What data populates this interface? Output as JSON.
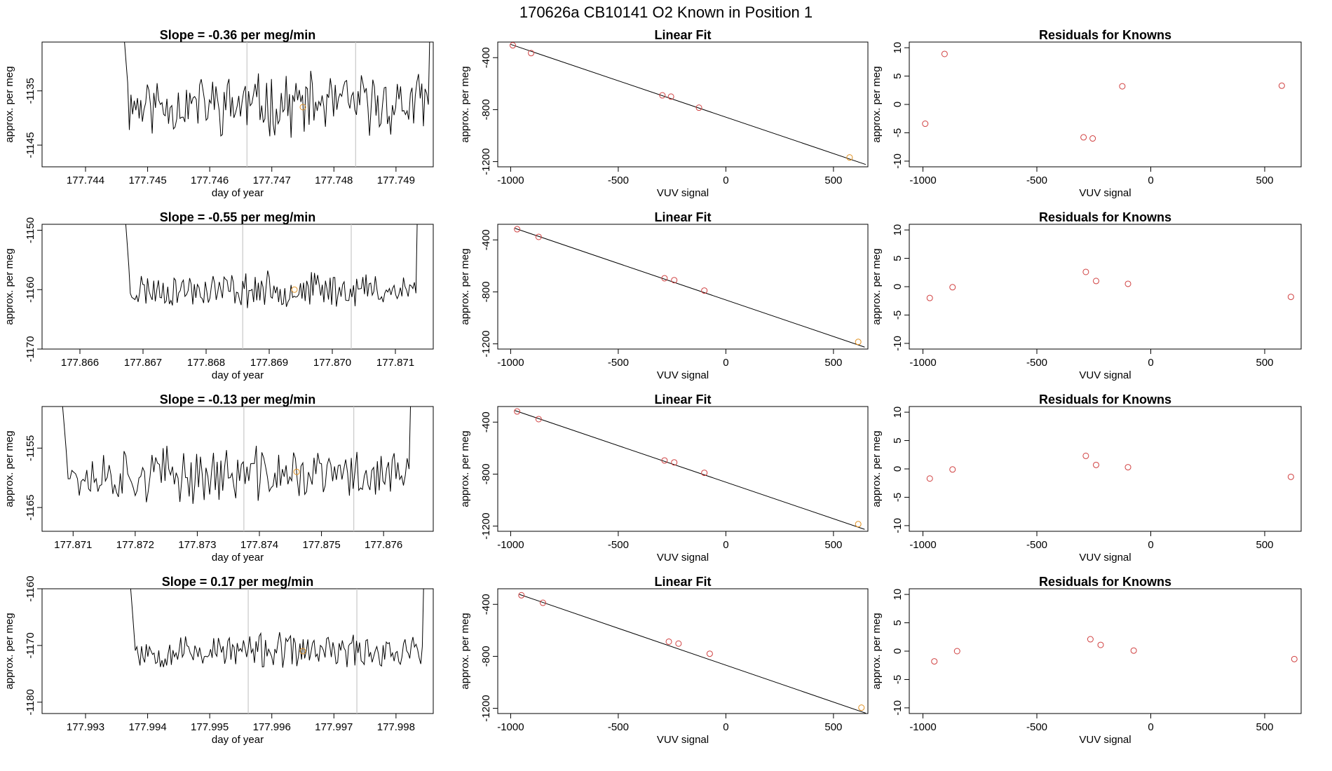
{
  "figure": {
    "title": "170626a     CB10141    O2 Known in Position  1"
  },
  "chart_data": [
    {
      "row": 1,
      "time_series": {
        "type": "line",
        "title": "Slope =  -0.36  per meg/min",
        "xlabel": "day of year",
        "ylabel": "approx. per meg",
        "xlim": [
          177.7433,
          177.7496
        ],
        "ylim": [
          -1149,
          -1126
        ],
        "xticks": [
          177.744,
          177.745,
          177.746,
          177.747,
          177.748,
          177.749
        ],
        "xtick_labels": [
          "177.744",
          "177.745",
          "177.746",
          "177.747",
          "177.748",
          "177.749"
        ],
        "yticks": [
          -1145,
          -1135
        ],
        "ytick_labels": [
          "-1145",
          "-1135"
        ],
        "start": 177.7446,
        "end": 177.7496,
        "base": -1137.5,
        "amplitude": 4.6,
        "seed": 11,
        "vlines": [
          177.7466,
          177.74835
        ],
        "highlight": [
          177.7475,
          -1138.0
        ]
      },
      "linear_fit": {
        "type": "scatter",
        "title": "Linear Fit",
        "xlabel": "VUV signal",
        "ylabel": "approx. per meg",
        "xlim": [
          -1060,
          660
        ],
        "ylim": [
          -1240,
          -280
        ],
        "xticks": [
          -1000,
          -500,
          0,
          500
        ],
        "xtick_labels": [
          "-1000",
          "-500",
          "0",
          "500"
        ],
        "yticks": [
          -1200,
          -800,
          -400
        ],
        "ytick_labels": [
          "-1200",
          "-800",
          "-400"
        ],
        "x": [
          -990,
          -905,
          -295,
          -255,
          -125,
          575
        ],
        "y": [
          -305,
          -365,
          -690,
          -700,
          -785,
          -1168
        ],
        "point_colors": [
          "#d04040",
          "#d04040",
          "#d04040",
          "#d04040",
          "#d04040",
          "#e09020"
        ],
        "line": [
          [
            -1000,
            -298
          ],
          [
            650,
            -1222
          ]
        ]
      },
      "residuals": {
        "type": "scatter",
        "title": "Residuals for Knowns",
        "xlabel": "VUV signal",
        "ylabel": "approx. per meg",
        "xlim": [
          -1060,
          660
        ],
        "ylim": [
          -11,
          11
        ],
        "xticks": [
          -1000,
          -500,
          0,
          500
        ],
        "xtick_labels": [
          "-1000",
          "-500",
          "0",
          "500"
        ],
        "yticks": [
          -10,
          -5,
          0,
          5,
          10
        ],
        "ytick_labels": [
          "-10",
          "-5",
          "0",
          "5",
          "10"
        ],
        "x": [
          -990,
          -905,
          -295,
          -255,
          -125,
          575
        ],
        "y": [
          -3.4,
          8.9,
          -5.8,
          -6.0,
          3.2,
          3.3
        ]
      }
    },
    {
      "row": 2,
      "time_series": {
        "type": "line",
        "title": "Slope =  -0.55  per meg/min",
        "xlabel": "day of year",
        "ylabel": "approx. per meg",
        "xlim": [
          177.8654,
          177.8716
        ],
        "ylim": [
          -1170,
          -1149
        ],
        "xticks": [
          177.866,
          177.867,
          177.868,
          177.869,
          177.87,
          177.871
        ],
        "xtick_labels": [
          "177.866",
          "177.867",
          "177.868",
          "177.869",
          "177.870",
          "177.871"
        ],
        "yticks": [
          -1170,
          -1160,
          -1150
        ],
        "ytick_labels": [
          "-1170",
          "-1160",
          "-1150"
        ],
        "start": 177.8667,
        "end": 177.8714,
        "base": -1160.0,
        "amplitude": 2.4,
        "seed": 23,
        "vlines": [
          177.86858,
          177.8703
        ],
        "highlight": [
          177.8694,
          -1160.0
        ]
      },
      "linear_fit": {
        "type": "scatter",
        "title": "Linear Fit",
        "xlabel": "VUV signal",
        "ylabel": "approx. per meg",
        "xlim": [
          -1060,
          660
        ],
        "ylim": [
          -1240,
          -280
        ],
        "xticks": [
          -1000,
          -500,
          0,
          500
        ],
        "xtick_labels": [
          "-1000",
          "-500",
          "0",
          "500"
        ],
        "yticks": [
          -1200,
          -800,
          -400
        ],
        "ytick_labels": [
          "-1200",
          "-800",
          "-400"
        ],
        "x": [
          -970,
          -870,
          -285,
          -240,
          -100,
          615
        ],
        "y": [
          -318,
          -377,
          -695,
          -710,
          -790,
          -1185
        ],
        "point_colors": [
          "#d04040",
          "#d04040",
          "#d04040",
          "#d04040",
          "#d04040",
          "#e09020"
        ],
        "line": [
          [
            -980,
            -311
          ],
          [
            645,
            -1225
          ]
        ]
      },
      "residuals": {
        "type": "scatter",
        "title": "Residuals for Knowns",
        "xlabel": "VUV signal",
        "ylabel": "approx. per meg",
        "xlim": [
          -1060,
          660
        ],
        "ylim": [
          -11,
          11
        ],
        "xticks": [
          -1000,
          -500,
          0,
          500
        ],
        "xtick_labels": [
          "-1000",
          "-500",
          "0",
          "500"
        ],
        "yticks": [
          -10,
          -5,
          0,
          5,
          10
        ],
        "ytick_labels": [
          "-10",
          "-5",
          "0",
          "5",
          "10"
        ],
        "x": [
          -970,
          -870,
          -285,
          -240,
          -100,
          615
        ],
        "y": [
          -2.0,
          -0.1,
          2.6,
          1.0,
          0.5,
          -1.8
        ]
      }
    },
    {
      "row": 3,
      "time_series": {
        "type": "line",
        "title": "Slope =  -0.13  per meg/min",
        "xlabel": "day of year",
        "ylabel": "approx. per meg",
        "xlim": [
          177.8705,
          177.8768
        ],
        "ylim": [
          -1169,
          -1148
        ],
        "xticks": [
          177.871,
          177.872,
          177.873,
          177.874,
          177.875,
          177.876
        ],
        "xtick_labels": [
          "177.871",
          "177.872",
          "177.873",
          "177.874",
          "177.875",
          "177.876"
        ],
        "yticks": [
          -1165,
          -1155
        ],
        "ytick_labels": [
          "-1165",
          "-1155"
        ],
        "start": 177.8708,
        "end": 177.8765,
        "base": -1159.5,
        "amplitude": 3.8,
        "seed": 37,
        "vlines": [
          177.87375,
          177.87552
        ],
        "highlight": [
          177.8746,
          -1159.0
        ]
      },
      "linear_fit": {
        "type": "scatter",
        "title": "Linear Fit",
        "xlabel": "VUV signal",
        "ylabel": "approx. per meg",
        "xlim": [
          -1060,
          660
        ],
        "ylim": [
          -1240,
          -280
        ],
        "xticks": [
          -1000,
          -500,
          0,
          500
        ],
        "xtick_labels": [
          "-1000",
          "-500",
          "0",
          "500"
        ],
        "yticks": [
          -1200,
          -800,
          -400
        ],
        "ytick_labels": [
          "-1200",
          "-800",
          "-400"
        ],
        "x": [
          -970,
          -870,
          -285,
          -240,
          -100,
          615
        ],
        "y": [
          -318,
          -377,
          -695,
          -710,
          -790,
          -1185
        ],
        "point_colors": [
          "#d04040",
          "#d04040",
          "#d04040",
          "#d04040",
          "#d04040",
          "#e09020"
        ],
        "line": [
          [
            -980,
            -311
          ],
          [
            645,
            -1225
          ]
        ]
      },
      "residuals": {
        "type": "scatter",
        "title": "Residuals for Knowns",
        "xlabel": "VUV signal",
        "ylabel": "approx. per meg",
        "xlim": [
          -1060,
          660
        ],
        "ylim": [
          -11,
          11
        ],
        "xticks": [
          -1000,
          -500,
          0,
          500
        ],
        "xtick_labels": [
          "-1000",
          "-500",
          "0",
          "500"
        ],
        "yticks": [
          -10,
          -5,
          0,
          5,
          10
        ],
        "ytick_labels": [
          "-10",
          "-5",
          "0",
          "5",
          "10"
        ],
        "x": [
          -970,
          -870,
          -285,
          -240,
          -100,
          615
        ],
        "y": [
          -1.7,
          -0.1,
          2.3,
          0.7,
          0.3,
          -1.4
        ]
      }
    },
    {
      "row": 4,
      "time_series": {
        "type": "line",
        "title": "Slope =  0.17  per meg/min",
        "xlabel": "day of year",
        "ylabel": "approx. per meg",
        "xlim": [
          177.9923,
          177.9986
        ],
        "ylim": [
          -1182,
          -1160
        ],
        "xticks": [
          177.993,
          177.994,
          177.995,
          177.996,
          177.997,
          177.998
        ],
        "xtick_labels": [
          "177.993",
          "177.994",
          "177.995",
          "177.996",
          "177.997",
          "177.998"
        ],
        "yticks": [
          -1180,
          -1170,
          -1160
        ],
        "ytick_labels": [
          "-1180",
          "-1170",
          "-1160"
        ],
        "start": 177.9937,
        "end": 177.9985,
        "base": -1171.0,
        "amplitude": 2.5,
        "seed": 53,
        "vlines": [
          177.99562,
          177.99737
        ],
        "highlight": [
          177.9965,
          -1171.0
        ]
      },
      "linear_fit": {
        "type": "scatter",
        "title": "Linear Fit",
        "xlabel": "VUV signal",
        "ylabel": "approx. per meg",
        "xlim": [
          -1060,
          660
        ],
        "ylim": [
          -1240,
          -280
        ],
        "xticks": [
          -1000,
          -500,
          0,
          500
        ],
        "xtick_labels": [
          "-1000",
          "-500",
          "0",
          "500"
        ],
        "yticks": [
          -1200,
          -800,
          -400
        ],
        "ytick_labels": [
          "-1200",
          "-800",
          "-400"
        ],
        "x": [
          -950,
          -850,
          -265,
          -220,
          -75,
          630
        ],
        "y": [
          -330,
          -388,
          -687,
          -702,
          -780,
          -1195
        ],
        "point_colors": [
          "#d04040",
          "#d04040",
          "#d04040",
          "#d04040",
          "#d04040",
          "#e09020"
        ],
        "line": [
          [
            -960,
            -323
          ],
          [
            650,
            -1237
          ]
        ]
      },
      "residuals": {
        "type": "scatter",
        "title": "Residuals for Knowns",
        "xlabel": "VUV signal",
        "ylabel": "approx. per meg",
        "xlim": [
          -1060,
          660
        ],
        "ylim": [
          -11,
          11
        ],
        "xticks": [
          -1000,
          -500,
          0,
          500
        ],
        "xtick_labels": [
          "-1000",
          "-500",
          "0",
          "500"
        ],
        "yticks": [
          -10,
          -5,
          0,
          5,
          10
        ],
        "ytick_labels": [
          "-10",
          "-5",
          "0",
          "5",
          "10"
        ],
        "x": [
          -950,
          -850,
          -265,
          -220,
          -75,
          630
        ],
        "y": [
          -1.8,
          0.0,
          2.1,
          1.1,
          0.1,
          -1.4
        ]
      }
    }
  ]
}
